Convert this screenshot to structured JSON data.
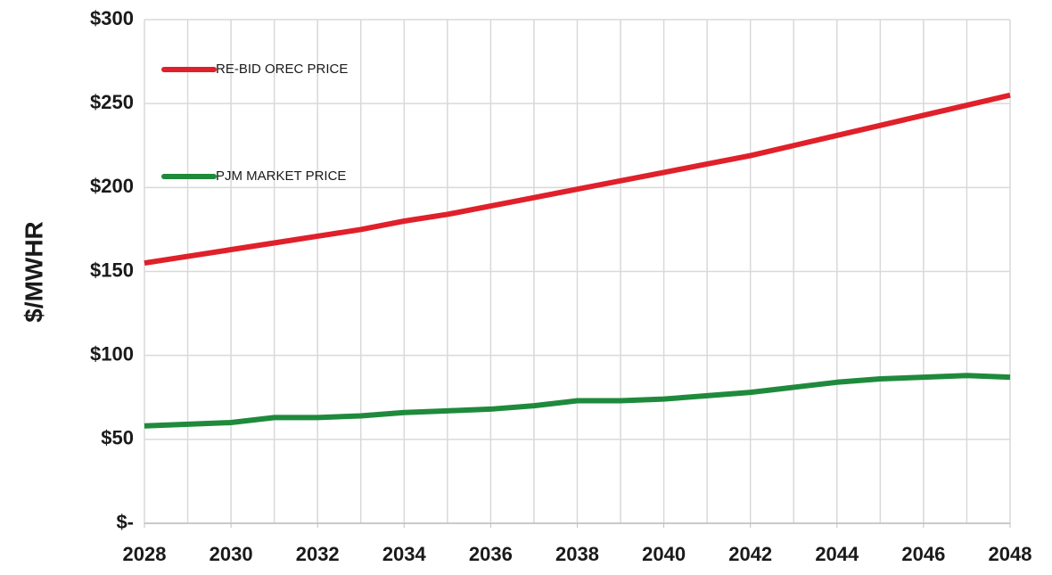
{
  "chart_data": {
    "type": "line",
    "ylabel": "$/MWHR",
    "x": [
      2028,
      2029,
      2030,
      2031,
      2032,
      2033,
      2034,
      2035,
      2036,
      2037,
      2038,
      2039,
      2040,
      2041,
      2042,
      2043,
      2044,
      2045,
      2046,
      2047,
      2048
    ],
    "series": [
      {
        "name": "RE-BID OREC PRICE",
        "color": "#e0202a",
        "values": [
          155,
          159,
          163,
          167,
          171,
          175,
          180,
          184,
          189,
          194,
          199,
          204,
          209,
          214,
          219,
          225,
          231,
          237,
          243,
          249,
          255
        ]
      },
      {
        "name": "PJM MARKET PRICE",
        "color": "#1f8a3c",
        "values": [
          58,
          59,
          60,
          63,
          63,
          64,
          66,
          67,
          68,
          70,
          73,
          73,
          74,
          76,
          78,
          81,
          84,
          86,
          87,
          88,
          87
        ]
      }
    ],
    "xlim": [
      2028,
      2048
    ],
    "xticks": [
      2028,
      2030,
      2032,
      2034,
      2036,
      2038,
      2040,
      2042,
      2044,
      2046,
      2048
    ],
    "ylim": [
      0,
      300
    ],
    "yticks": [
      {
        "value": 0,
        "label": "$-"
      },
      {
        "value": 50,
        "label": "$50"
      },
      {
        "value": 100,
        "label": "$100"
      },
      {
        "value": 150,
        "label": "$150"
      },
      {
        "value": 200,
        "label": "$200"
      },
      {
        "value": 250,
        "label": "$250"
      },
      {
        "value": 300,
        "label": "$300"
      }
    ],
    "grid": true
  }
}
